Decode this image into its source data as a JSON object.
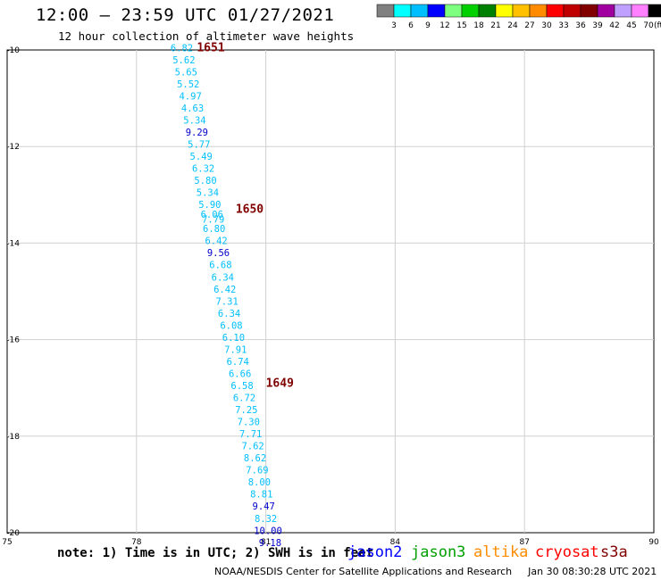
{
  "header": {
    "title": "12:00 – 23:59 UTC 01/27/2021",
    "subtitle": "12 hour collection of altimeter wave heights"
  },
  "colorbar": {
    "unit": "(ft)",
    "labels": [
      "3",
      "6",
      "9",
      "12",
      "15",
      "18",
      "21",
      "24",
      "27",
      "30",
      "33",
      "36",
      "39",
      "42",
      "45",
      "70"
    ],
    "colors": [
      "#808080",
      "#00ffff",
      "#00bfff",
      "#0000ff",
      "#7fff7f",
      "#00d000",
      "#008000",
      "#ffff00",
      "#ffc000",
      "#ff8c00",
      "#ff0000",
      "#c00000",
      "#800000",
      "#a000a0",
      "#c0a0ff",
      "#ff80ff",
      "#000000"
    ]
  },
  "map": {
    "lon_ticks": [
      "75",
      "78",
      "81",
      "84",
      "87",
      "90"
    ],
    "lat_ticks": [
      "-10",
      "-12",
      "-14",
      "-16",
      "-18",
      "-20"
    ],
    "lon_range": [
      75,
      90
    ],
    "lat_range": [
      -20,
      -10
    ]
  },
  "chart_data": {
    "type": "scatter",
    "title": "12:00 – 23:59 UTC 01/27/2021",
    "subtitle": "12 hour collection of altimeter wave heights",
    "xlabel": "",
    "ylabel": "",
    "xlim": [
      75,
      90
    ],
    "ylim": [
      -20,
      -10
    ],
    "grid": true,
    "points": [
      {
        "lon": 79.05,
        "lat": -9.95,
        "swh": "6.82",
        "color": "#00bfff"
      },
      {
        "lon": 79.1,
        "lat": -10.2,
        "swh": "5.62",
        "color": "#00bfff"
      },
      {
        "lon": 79.15,
        "lat": -10.45,
        "swh": "5.65",
        "color": "#00bfff"
      },
      {
        "lon": 79.2,
        "lat": -10.7,
        "swh": "5.52",
        "color": "#00bfff"
      },
      {
        "lon": 79.25,
        "lat": -10.95,
        "swh": "4.97",
        "color": "#00bfff"
      },
      {
        "lon": 79.3,
        "lat": -11.2,
        "swh": "4.63",
        "color": "#00bfff"
      },
      {
        "lon": 79.35,
        "lat": -11.45,
        "swh": "5.34",
        "color": "#00bfff"
      },
      {
        "lon": 79.4,
        "lat": -11.7,
        "swh": "9.29",
        "color": "#0000cd"
      },
      {
        "lon": 79.45,
        "lat": -11.95,
        "swh": "5.77",
        "color": "#00bfff"
      },
      {
        "lon": 79.5,
        "lat": -12.2,
        "swh": "5.49",
        "color": "#00bfff"
      },
      {
        "lon": 79.55,
        "lat": -12.45,
        "swh": "6.32",
        "color": "#00bfff"
      },
      {
        "lon": 79.6,
        "lat": -12.7,
        "swh": "5.80",
        "color": "#00bfff"
      },
      {
        "lon": 79.65,
        "lat": -12.95,
        "swh": "5.34",
        "color": "#00bfff"
      },
      {
        "lon": 79.7,
        "lat": -13.2,
        "swh": "5.90",
        "color": "#00bfff"
      },
      {
        "lon": 79.75,
        "lat": -13.4,
        "swh": "6.06",
        "color": "#00bfff"
      },
      {
        "lon": 79.78,
        "lat": -13.5,
        "swh": "7.79",
        "color": "#00bfff"
      },
      {
        "lon": 79.8,
        "lat": -13.7,
        "swh": "6.80",
        "color": "#00bfff"
      },
      {
        "lon": 79.85,
        "lat": -13.95,
        "swh": "6.42",
        "color": "#00bfff"
      },
      {
        "lon": 79.9,
        "lat": -14.2,
        "swh": "9.56",
        "color": "#0000cd"
      },
      {
        "lon": 79.95,
        "lat": -14.45,
        "swh": "6.68",
        "color": "#00bfff"
      },
      {
        "lon": 80.0,
        "lat": -14.7,
        "swh": "6.34",
        "color": "#00bfff"
      },
      {
        "lon": 80.05,
        "lat": -14.95,
        "swh": "6.42",
        "color": "#00bfff"
      },
      {
        "lon": 80.1,
        "lat": -15.2,
        "swh": "7.31",
        "color": "#00bfff"
      },
      {
        "lon": 80.15,
        "lat": -15.45,
        "swh": "6.34",
        "color": "#00bfff"
      },
      {
        "lon": 80.2,
        "lat": -15.7,
        "swh": "6.08",
        "color": "#00bfff"
      },
      {
        "lon": 80.25,
        "lat": -15.95,
        "swh": "6.10",
        "color": "#00bfff"
      },
      {
        "lon": 80.3,
        "lat": -16.2,
        "swh": "7.91",
        "color": "#00bfff"
      },
      {
        "lon": 80.35,
        "lat": -16.45,
        "swh": "6.74",
        "color": "#00bfff"
      },
      {
        "lon": 80.4,
        "lat": -16.7,
        "swh": "6.66",
        "color": "#00bfff"
      },
      {
        "lon": 80.45,
        "lat": -16.95,
        "swh": "6.58",
        "color": "#00bfff"
      },
      {
        "lon": 80.5,
        "lat": -17.2,
        "swh": "6.72",
        "color": "#00bfff"
      },
      {
        "lon": 80.55,
        "lat": -17.45,
        "swh": "7.25",
        "color": "#00bfff"
      },
      {
        "lon": 80.6,
        "lat": -17.7,
        "swh": "7.30",
        "color": "#00bfff"
      },
      {
        "lon": 80.65,
        "lat": -17.95,
        "swh": "7.71",
        "color": "#00bfff"
      },
      {
        "lon": 80.7,
        "lat": -18.2,
        "swh": "7.62",
        "color": "#00bfff"
      },
      {
        "lon": 80.75,
        "lat": -18.45,
        "swh": "8.62",
        "color": "#00bfff"
      },
      {
        "lon": 80.8,
        "lat": -18.7,
        "swh": "7.69",
        "color": "#00bfff"
      },
      {
        "lon": 80.85,
        "lat": -18.95,
        "swh": "8.00",
        "color": "#00bfff"
      },
      {
        "lon": 80.9,
        "lat": -19.2,
        "swh": "8.81",
        "color": "#00bfff"
      },
      {
        "lon": 80.95,
        "lat": -19.45,
        "swh": "9.47",
        "color": "#0000cd"
      },
      {
        "lon": 81.0,
        "lat": -19.7,
        "swh": "8.32",
        "color": "#00bfff"
      },
      {
        "lon": 81.05,
        "lat": -19.95,
        "swh": "10.00",
        "color": "#0000cd"
      },
      {
        "lon": 81.1,
        "lat": -20.2,
        "swh": "9.18",
        "color": "#0000cd"
      }
    ],
    "time_labels": [
      {
        "lon": 79.4,
        "lat": -9.95,
        "text": "1651"
      },
      {
        "lon": 80.3,
        "lat": -13.3,
        "text": "1650"
      },
      {
        "lon": 81.0,
        "lat": -16.9,
        "text": "1649"
      }
    ]
  },
  "footer": {
    "note": "note: 1) Time is in UTC; 2) SWH is in feet",
    "satellites": [
      {
        "name": "jason2",
        "color": "#0000ff"
      },
      {
        "name": "jason3",
        "color": "#00a000"
      },
      {
        "name": "altika",
        "color": "#ff8c00"
      },
      {
        "name": "cryosat",
        "color": "#ff0000"
      },
      {
        "name": "s3a",
        "color": "#800000"
      }
    ],
    "credit": "NOAA/NESDIS Center for Satellite Applications and Research",
    "timestamp": "Jan 30 08:30:28 UTC 2021"
  }
}
